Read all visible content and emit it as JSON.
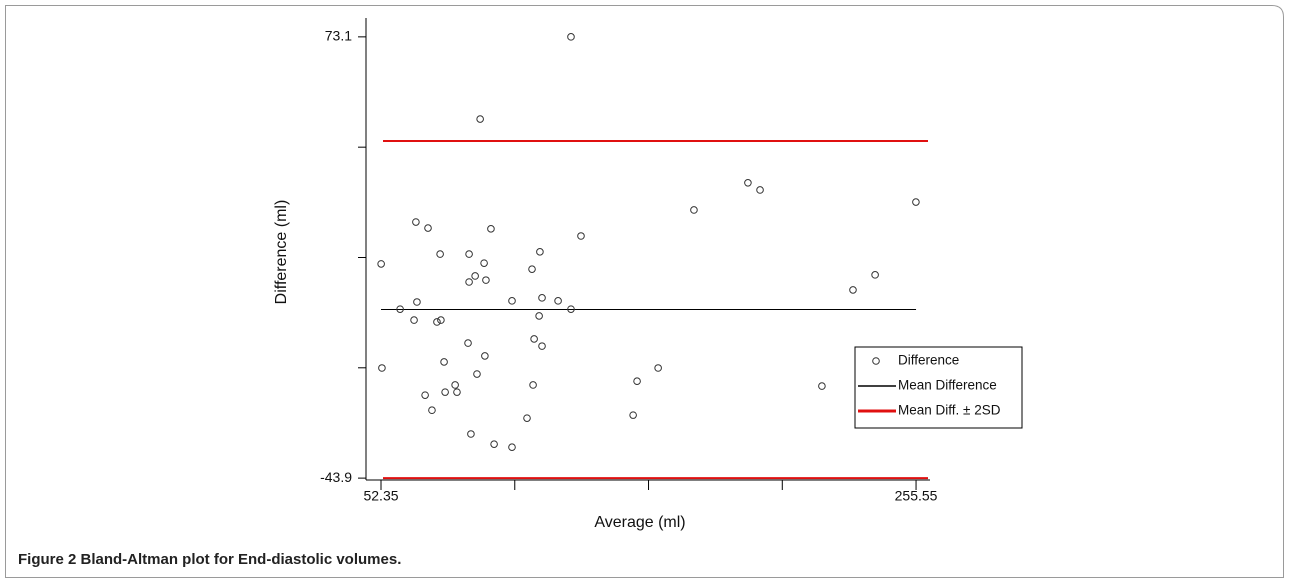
{
  "chart_data": {
    "type": "scatter",
    "caption": "Figure 2 Bland-Altman plot for End-diastolic volumes.",
    "x_label": "Average (ml)",
    "y_label": "Difference (ml)",
    "xlim": [
      46.65,
      260.85
    ],
    "ylim": [
      -44.4,
      78.1
    ],
    "xticks": [
      52.35,
      255.55
    ],
    "xminor_ticks": [
      103.15,
      153.95,
      204.75
    ],
    "yticks": [
      73.1,
      -43.9
    ],
    "yminor_ticks": [
      43.85,
      14.6,
      -14.65
    ],
    "series": [
      {
        "name": "Difference",
        "color": "#333333",
        "x": [
          124.5,
          90.0,
          52.4,
          65.6,
          70.2,
          94.1,
          74.8,
          85.8,
          91.5,
          88.1,
          92.2,
          85.8,
          109.7,
          112.7,
          128.3,
          171.2,
          191.7,
          196.3,
          255.5,
          231.6,
          240.0,
          59.6,
          66.0,
          64.9,
          73.6,
          75.1,
          102.1,
          113.5,
          119.6,
          124.5,
          112.4,
          110.5,
          113.5,
          85.4,
          91.8,
          76.3,
          52.7,
          88.8,
          80.5,
          81.2,
          76.7,
          69.1,
          71.7,
          110.1,
          107.8,
          86.5,
          95.3,
          102.1,
          148.1,
          149.6,
          157.6,
          219.8
        ],
        "values": [
          73.1,
          51.3,
          12.9,
          24.0,
          22.4,
          22.2,
          15.5,
          15.5,
          13.1,
          9.7,
          8.6,
          8.1,
          11.5,
          16.1,
          20.3,
          27.2,
          34.4,
          32.5,
          29.3,
          6.0,
          10.0,
          0.9,
          2.8,
          -2.0,
          -2.5,
          -2.0,
          3.1,
          3.9,
          3.1,
          0.9,
          -0.9,
          -7.0,
          -8.9,
          -8.1,
          -11.5,
          -13.1,
          -14.7,
          -16.3,
          -19.2,
          -21.1,
          -21.1,
          -21.9,
          -25.9,
          -19.2,
          -28.0,
          -32.2,
          -34.9,
          -35.7,
          -27.2,
          -18.2,
          -14.7,
          -19.5
        ]
      }
    ],
    "mean_line": {
      "name": "Mean Difference",
      "value": 0.8,
      "color": "#000000"
    },
    "limit_lines": {
      "name": "Mean Diff. ± 2SD",
      "values": [
        45.5,
        -43.9
      ],
      "color": "#e01010"
    }
  }
}
